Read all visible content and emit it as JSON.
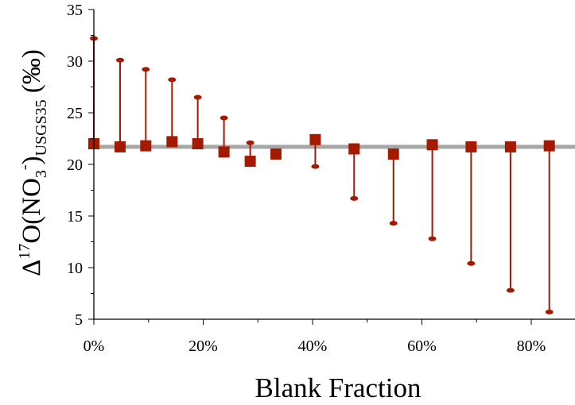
{
  "chart_data": {
    "type": "scatter",
    "title": "",
    "xlabel": "Blank Fraction",
    "ylabel": {
      "prefix": "Δ",
      "sup1": "17",
      "mid": "O(NO",
      "sub1": "3",
      "sup2": "-",
      "close": ")",
      "sub2": "USGS35",
      "unit": " (‰)"
    },
    "xlim": [
      0,
      0.88
    ],
    "ylim": [
      5,
      35
    ],
    "xticks": [
      0,
      0.2,
      0.4,
      0.6,
      0.8
    ],
    "xtick_labels": [
      "0%",
      "20%",
      "40%",
      "60%",
      "80%"
    ],
    "yticks": [
      5,
      10,
      15,
      20,
      25,
      30,
      35
    ],
    "ytick_labels": [
      "5",
      "10",
      "15",
      "20",
      "25",
      "30",
      "35"
    ],
    "grid": false,
    "reference_line": {
      "y": 21.7,
      "color": "#a6a6a6"
    },
    "series": [
      {
        "marker": "square",
        "color": "#a31a00",
        "points": [
          {
            "x": 0.0,
            "y": 22.0,
            "end": 32.2
          },
          {
            "x": 0.048,
            "y": 21.7,
            "end": 30.1
          },
          {
            "x": 0.095,
            "y": 21.8,
            "end": 29.2
          },
          {
            "x": 0.143,
            "y": 22.2,
            "end": 28.2
          },
          {
            "x": 0.19,
            "y": 22.0,
            "end": 26.5
          },
          {
            "x": 0.238,
            "y": 21.2,
            "end": 24.5
          },
          {
            "x": 0.286,
            "y": 20.3,
            "end": 22.1
          },
          {
            "x": 0.333,
            "y": 21.0,
            "end": null
          },
          {
            "x": 0.405,
            "y": 22.4,
            "end": 19.8
          },
          {
            "x": 0.476,
            "y": 21.5,
            "end": 16.7
          },
          {
            "x": 0.548,
            "y": 21.0,
            "end": 14.3
          },
          {
            "x": 0.619,
            "y": 21.9,
            "end": 12.8
          },
          {
            "x": 0.69,
            "y": 21.7,
            "end": 10.4
          },
          {
            "x": 0.762,
            "y": 21.7,
            "end": 7.8
          },
          {
            "x": 0.833,
            "y": 21.8,
            "end": 5.7
          }
        ]
      }
    ]
  }
}
